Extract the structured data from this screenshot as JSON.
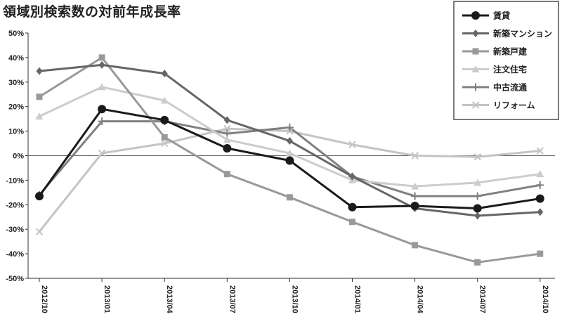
{
  "chart_data": {
    "type": "line",
    "title": "領域別検索数の対前年成長率",
    "xlabel": "",
    "ylabel": "",
    "categories": [
      "2012/10",
      "2013/01",
      "2013/04",
      "2013/07",
      "2013/10",
      "2014/01",
      "2014/04",
      "2014/07",
      "2014/10"
    ],
    "ylim": [
      -50,
      50
    ],
    "yticks": [
      "50%",
      "40%",
      "30%",
      "20%",
      "10%",
      "0%",
      "-10%",
      "-20%",
      "-30%",
      "-40%",
      "-50%"
    ],
    "grid": false,
    "legend_position": "top-right",
    "series": [
      {
        "name": "賃貸",
        "marker": "circle",
        "color": "#1a1a1a",
        "values": [
          -16.5,
          19,
          14.5,
          3,
          -2,
          -21,
          -20.5,
          -21.5,
          -17.5
        ]
      },
      {
        "name": "新築マンション",
        "marker": "diamond",
        "color": "#666666",
        "values": [
          34.5,
          37,
          33.5,
          14.5,
          6,
          -8.5,
          -21.5,
          -24.5,
          -23
        ]
      },
      {
        "name": "新築戸建",
        "marker": "square",
        "color": "#999999",
        "values": [
          24,
          40,
          7.5,
          -7.5,
          -17,
          -27,
          -36.5,
          -43.5,
          -40
        ]
      },
      {
        "name": "注文住宅",
        "marker": "triangle",
        "color": "#cccccc",
        "values": [
          16,
          28,
          22.5,
          6.5,
          1,
          -10,
          -12.5,
          -11,
          -7.5
        ]
      },
      {
        "name": "中古流通",
        "marker": "plus",
        "color": "#808080",
        "values": [
          -16,
          14,
          14,
          9,
          11.5,
          -8.5,
          -16.5,
          -16.5,
          -12
        ]
      },
      {
        "name": "リフォーム",
        "marker": "x",
        "color": "#c4c4c4",
        "values": [
          -31,
          1,
          5,
          11,
          10,
          4.5,
          0,
          -0.5,
          2
        ]
      }
    ]
  }
}
